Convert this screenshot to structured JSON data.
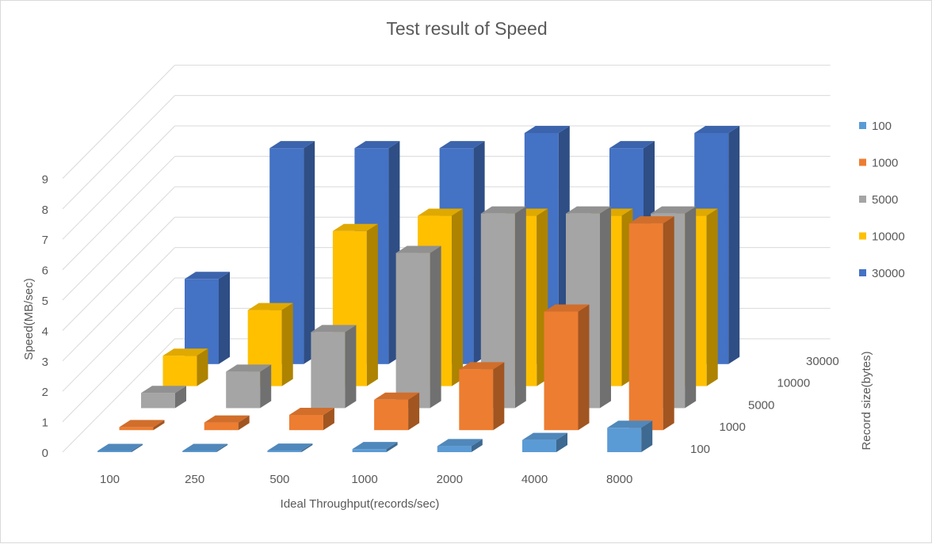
{
  "chart_data": {
    "type": "bar",
    "subtype": "3d-column",
    "title": "Test result of Speed",
    "xlabel": "Ideal Throughput(records/sec)",
    "ylabel": "Speed(MB/sec)",
    "zlabel": "Record size(bytes)",
    "categories": [
      "100",
      "250",
      "500",
      "1000",
      "2000",
      "4000",
      "8000"
    ],
    "yticks": [
      "0",
      "1",
      "2",
      "3",
      "4",
      "5",
      "6",
      "7",
      "8",
      "9"
    ],
    "ylim": [
      0,
      9
    ],
    "legend_position": "right",
    "grid": true,
    "series": [
      {
        "name": "100",
        "color": "#5B9BD5",
        "values": [
          0.01,
          0.02,
          0.05,
          0.1,
          0.2,
          0.4,
          0.8
        ]
      },
      {
        "name": "1000",
        "color": "#ED7D31",
        "values": [
          0.1,
          0.25,
          0.5,
          1.0,
          2.0,
          3.9,
          6.8
        ]
      },
      {
        "name": "5000",
        "color": "#A5A5A5",
        "values": [
          0.5,
          1.2,
          2.5,
          5.1,
          6.4,
          6.4,
          6.4
        ]
      },
      {
        "name": "10000",
        "color": "#FFC000",
        "values": [
          1.0,
          2.5,
          5.1,
          5.6,
          5.6,
          5.6,
          5.6
        ]
      },
      {
        "name": "30000",
        "color": "#4472C4",
        "values": [
          2.8,
          7.1,
          7.1,
          7.1,
          7.6,
          7.1,
          7.6
        ]
      }
    ]
  }
}
